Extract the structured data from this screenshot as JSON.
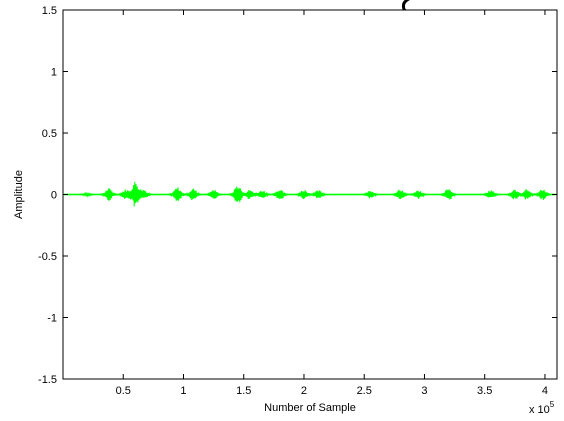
{
  "top_fragment": "ع",
  "chart_data": {
    "type": "line",
    "title": "",
    "xlabel": "Number of Sample",
    "ylabel": "Amplitude",
    "x_multiplier_label": "x 10",
    "x_multiplier_exponent": "5",
    "xlim": [
      0,
      4.1
    ],
    "ylim": [
      -1.5,
      1.5
    ],
    "x_ticks": [
      "0.5",
      "1",
      "1.5",
      "2",
      "2.5",
      "3",
      "3.5",
      "4"
    ],
    "y_ticks": [
      "1.5",
      "1",
      "0.5",
      "0",
      "-0.5",
      "-1",
      "-1.5"
    ],
    "grid": false,
    "line_color": "#00ff00",
    "series": [
      {
        "bursts": [
          {
            "x": 0.2,
            "amp": 0.01
          },
          {
            "x": 0.38,
            "amp": 0.05
          },
          {
            "x": 0.52,
            "amp": 0.04
          },
          {
            "x": 0.6,
            "amp": 0.11
          },
          {
            "x": 0.67,
            "amp": 0.04
          },
          {
            "x": 0.95,
            "amp": 0.06
          },
          {
            "x": 1.08,
            "amp": 0.05
          },
          {
            "x": 1.25,
            "amp": 0.04
          },
          {
            "x": 1.45,
            "amp": 0.08
          },
          {
            "x": 1.55,
            "amp": 0.04
          },
          {
            "x": 1.65,
            "amp": 0.035
          },
          {
            "x": 1.8,
            "amp": 0.05
          },
          {
            "x": 2.0,
            "amp": 0.04
          },
          {
            "x": 2.12,
            "amp": 0.035
          },
          {
            "x": 2.55,
            "amp": 0.03
          },
          {
            "x": 2.8,
            "amp": 0.045
          },
          {
            "x": 2.95,
            "amp": 0.035
          },
          {
            "x": 3.2,
            "amp": 0.05
          },
          {
            "x": 3.55,
            "amp": 0.035
          },
          {
            "x": 3.75,
            "amp": 0.04
          },
          {
            "x": 3.85,
            "amp": 0.045
          },
          {
            "x": 3.98,
            "amp": 0.045
          }
        ]
      }
    ]
  }
}
